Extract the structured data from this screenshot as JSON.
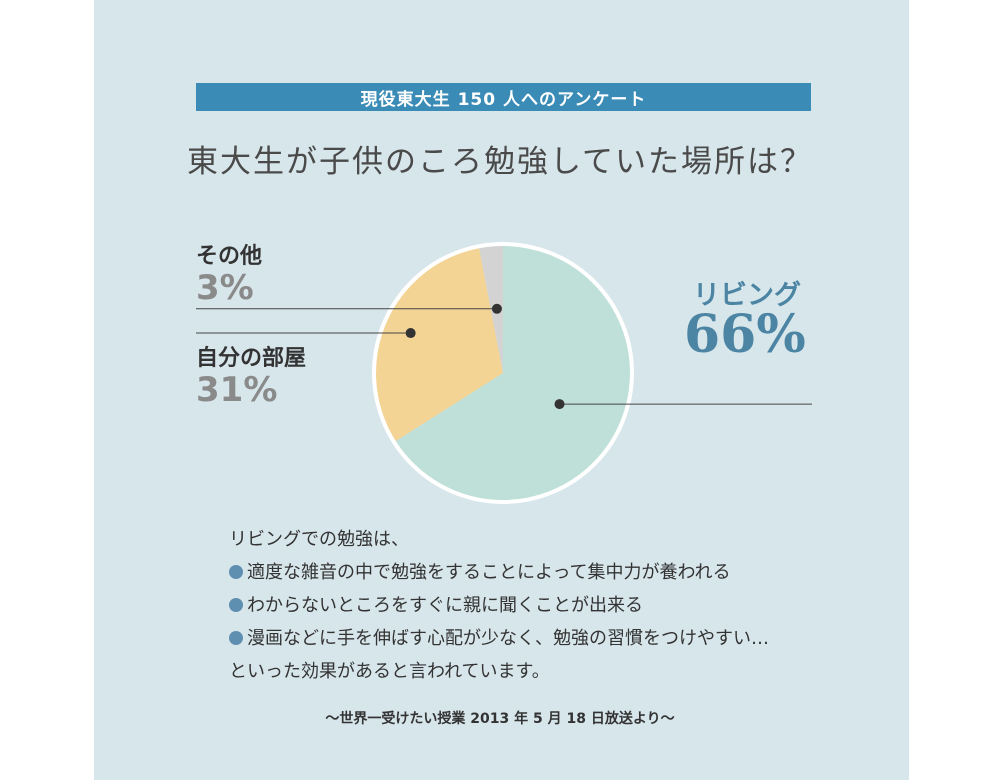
{
  "banner": "現役東大生 150 人へのアンケート",
  "question": "東大生が子供のころ勉強していた場所は？",
  "chart_data": {
    "type": "pie",
    "slices": [
      {
        "label": "リビング",
        "value": 66,
        "value_label": "66%",
        "color": "#bfe0d8"
      },
      {
        "label": "自分の部屋",
        "value": 31,
        "value_label": "31%",
        "color": "#f3d495"
      },
      {
        "label": "その他",
        "value": 3,
        "value_label": "3%",
        "color": "#d3d3d3"
      }
    ],
    "start": "top",
    "direction": "clockwise"
  },
  "notes": {
    "intro": "リビングでの勉強は、",
    "bullets": [
      "適度な雑音の中で勉強をすることによって集中力が養われる",
      "わからないところをすぐに親に聞くことが出来る",
      "漫画などに手を伸ばす心配が少なく、勉強の習慣をつけやすい…"
    ],
    "closing": "といった効果があると言われています。"
  },
  "source": "〜世界一受けたい授業 2013 年 5 月 18 日放送より〜"
}
